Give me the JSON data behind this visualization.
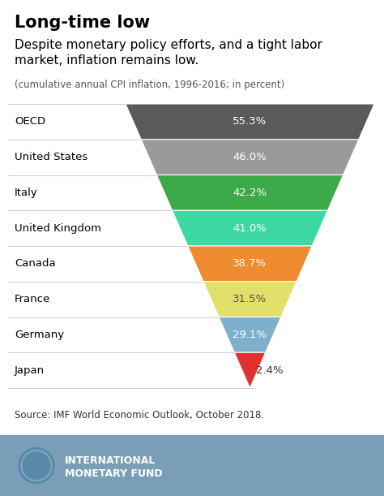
{
  "title": "Long-time low",
  "subtitle": "Despite monetary policy efforts, and a tight labor\nmarket, inflation remains low.",
  "caption": "(cumulative annual CPI inflation, 1996-2016; in percent)",
  "source": "Source: IMF World Economic Outlook, October 2018.",
  "categories": [
    "OECD",
    "United States",
    "Italy",
    "United Kingdom",
    "Canada",
    "France",
    "Germany",
    "Japan"
  ],
  "values": [
    55.3,
    46.0,
    42.2,
    41.0,
    38.7,
    31.5,
    29.1,
    2.4
  ],
  "colors": [
    "#5a5a5a",
    "#9a9a9a",
    "#3daa4a",
    "#3dd9a4",
    "#EF8C2F",
    "#E0E06A",
    "#7EB0CC",
    "#E03030"
  ],
  "background_color": "#ffffff",
  "footer_color": "#7A9DB8",
  "title_fontsize": 15,
  "subtitle_fontsize": 11,
  "caption_fontsize": 8.5,
  "label_fontsize": 9.5,
  "value_fontsize": 9.5,
  "source_fontsize": 8.5
}
